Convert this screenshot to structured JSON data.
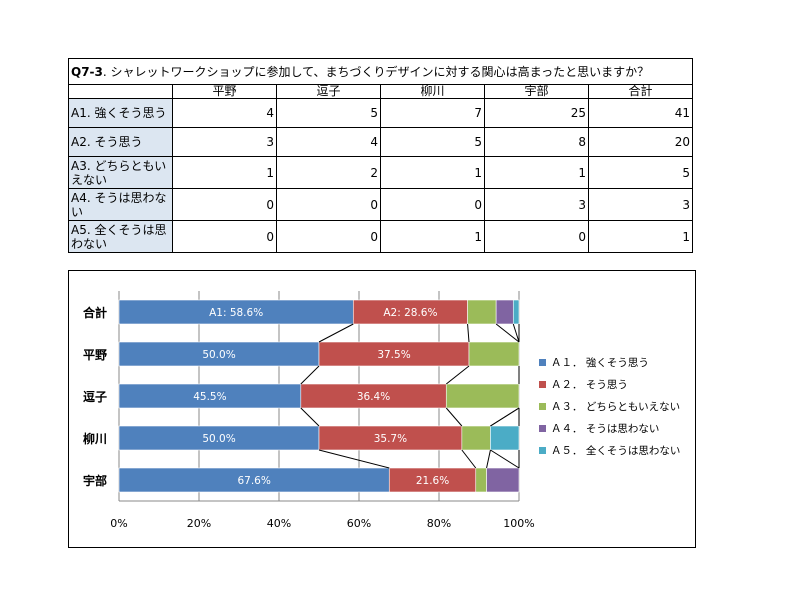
{
  "table": {
    "title_code": "Q7-3",
    "title_text": ". シャレットワークショップに参加して、まちづくりデザインに対する関心は高まったと思いますか？",
    "columns": [
      "平野",
      "逗子",
      "柳川",
      "宇部",
      "合計"
    ],
    "rows": [
      {
        "label": "A1. 強くそう思う",
        "values": [
          "4",
          "5",
          "7",
          "25",
          "41"
        ]
      },
      {
        "label": "A2. そう思う",
        "values": [
          "3",
          "4",
          "5",
          "8",
          "20"
        ]
      },
      {
        "label": "A3. どちらともいえない",
        "values": [
          "1",
          "2",
          "1",
          "1",
          "5"
        ]
      },
      {
        "label": "A4. そうは思わない",
        "values": [
          "0",
          "0",
          "0",
          "3",
          "3"
        ]
      },
      {
        "label": "A5. 全くそうは思わない",
        "values": [
          "0",
          "0",
          "1",
          "0",
          "1"
        ]
      }
    ]
  },
  "chart_data": {
    "type": "bar",
    "orientation": "horizontal",
    "stacked": "percent",
    "categories": [
      "合計",
      "平野",
      "逗子",
      "柳川",
      "宇部"
    ],
    "series": [
      {
        "name": "Ａ１． 強くそう思う",
        "color": "#4f81bd",
        "values": [
          41,
          4,
          5,
          7,
          25
        ],
        "labels": [
          "A1: 58.6%",
          "50.0%",
          "45.5%",
          "50.0%",
          "67.6%"
        ]
      },
      {
        "name": "Ａ２． そう思う",
        "color": "#c0504d",
        "values": [
          20,
          3,
          4,
          5,
          8
        ],
        "labels": [
          "A2: 28.6%",
          "37.5%",
          "36.4%",
          "35.7%",
          "21.6%"
        ]
      },
      {
        "name": "Ａ３． どちらともいえない",
        "color": "#9bbb59",
        "values": [
          5,
          1,
          2,
          1,
          1
        ]
      },
      {
        "name": "Ａ４． そうは思わない",
        "color": "#8064a2",
        "values": [
          3,
          0,
          0,
          0,
          3
        ]
      },
      {
        "name": "Ａ５． 全くそうは思わない",
        "color": "#4bacc6",
        "values": [
          1,
          0,
          0,
          1,
          0
        ]
      }
    ],
    "x_ticks": [
      "0%",
      "20%",
      "40%",
      "60%",
      "80%",
      "100%"
    ],
    "xlim": [
      0,
      100
    ],
    "series_lines": true,
    "grid": true,
    "legend": "right"
  }
}
